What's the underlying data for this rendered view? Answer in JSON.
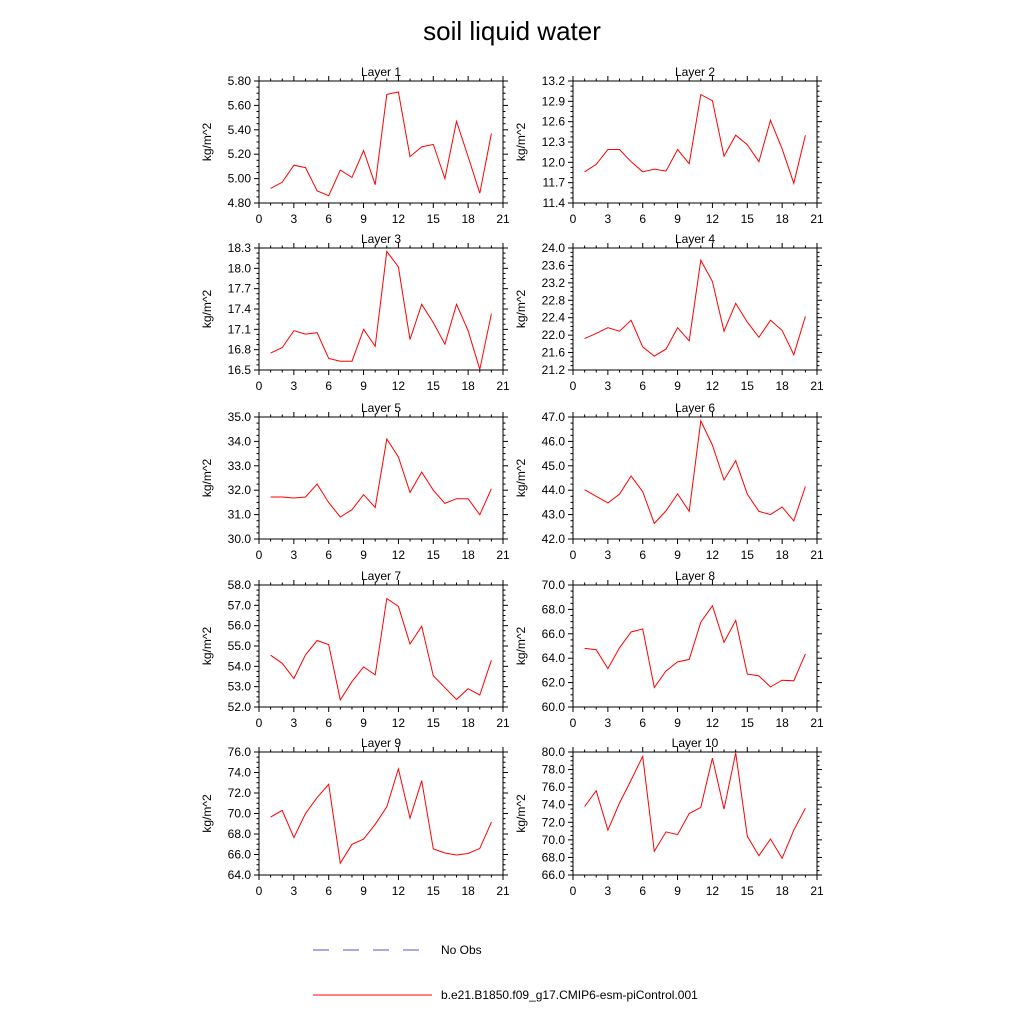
{
  "title": "soil liquid water",
  "legend": {
    "entries": [
      {
        "label": "No Obs",
        "color": "#5555cc",
        "style": "dashed"
      },
      {
        "label": "b.e21.B1850.f09_g17.CMIP6-esm-piControl.001",
        "color": "#ff0000",
        "style": "solid"
      }
    ]
  },
  "chart_data": [
    {
      "type": "line",
      "title": "Layer 1",
      "ylabel": "kg/m^2",
      "xlim": [
        0,
        21
      ],
      "ylim": [
        4.8,
        5.8
      ],
      "xticks": [
        "0",
        "3",
        "6",
        "9",
        "12",
        "15",
        "18",
        "21"
      ],
      "yticks": [
        "4.80",
        "5.00",
        "5.20",
        "5.40",
        "5.60",
        "5.80"
      ],
      "x": [
        1,
        2,
        3,
        4,
        5,
        6,
        7,
        8,
        9,
        10,
        11,
        12,
        13,
        14,
        15,
        16,
        17,
        18,
        19,
        20
      ],
      "series": [
        {
          "name": "b.e21.B1850.f09_g17.CMIP6-esm-piControl.001",
          "color": "#ff0000",
          "values": [
            4.92,
            4.97,
            5.11,
            5.09,
            4.9,
            4.86,
            5.07,
            5.01,
            5.23,
            4.95,
            5.69,
            5.71,
            5.18,
            5.26,
            5.28,
            5.0,
            5.47,
            5.18,
            4.88,
            5.37
          ]
        }
      ]
    },
    {
      "type": "line",
      "title": "Layer 2",
      "ylabel": "kg/m^2",
      "xlim": [
        0,
        21
      ],
      "ylim": [
        11.4,
        13.2
      ],
      "xticks": [
        "0",
        "3",
        "6",
        "9",
        "12",
        "15",
        "18",
        "21"
      ],
      "yticks": [
        "11.4",
        "11.7",
        "12.0",
        "12.3",
        "12.6",
        "12.9",
        "13.2"
      ],
      "x": [
        1,
        2,
        3,
        4,
        5,
        6,
        7,
        8,
        9,
        10,
        11,
        12,
        13,
        14,
        15,
        16,
        17,
        18,
        19,
        20
      ],
      "series": [
        {
          "name": "b.e21.B1850.f09_g17.CMIP6-esm-piControl.001",
          "color": "#ff0000",
          "values": [
            11.86,
            11.97,
            12.19,
            12.19,
            12.01,
            11.86,
            11.9,
            11.87,
            12.19,
            11.98,
            13.0,
            12.91,
            12.09,
            12.4,
            12.26,
            12.01,
            12.62,
            12.2,
            11.69,
            12.4
          ]
        }
      ]
    },
    {
      "type": "line",
      "title": "Layer 3",
      "ylabel": "kg/m^2",
      "xlim": [
        0,
        21
      ],
      "ylim": [
        16.5,
        18.3
      ],
      "xticks": [
        "0",
        "3",
        "6",
        "9",
        "12",
        "15",
        "18",
        "21"
      ],
      "yticks": [
        "16.5",
        "16.8",
        "17.1",
        "17.4",
        "17.7",
        "18.0",
        "18.3"
      ],
      "x": [
        1,
        2,
        3,
        4,
        5,
        6,
        7,
        8,
        9,
        10,
        11,
        12,
        13,
        14,
        15,
        16,
        17,
        18,
        19,
        20
      ],
      "series": [
        {
          "name": "b.e21.B1850.f09_g17.CMIP6-esm-piControl.001",
          "color": "#ff0000",
          "values": [
            16.75,
            16.83,
            17.08,
            17.03,
            17.05,
            16.67,
            16.63,
            16.63,
            17.1,
            16.85,
            18.25,
            18.02,
            16.95,
            17.47,
            17.2,
            16.88,
            17.47,
            17.08,
            16.51,
            17.33
          ]
        }
      ]
    },
    {
      "type": "line",
      "title": "Layer 4",
      "ylabel": "kg/m^2",
      "xlim": [
        0,
        21
      ],
      "ylim": [
        21.2,
        24.0
      ],
      "xticks": [
        "0",
        "3",
        "6",
        "9",
        "12",
        "15",
        "18",
        "21"
      ],
      "yticks": [
        "21.2",
        "21.6",
        "22.0",
        "22.4",
        "22.8",
        "23.2",
        "23.6",
        "24.0"
      ],
      "x": [
        1,
        2,
        3,
        4,
        5,
        6,
        7,
        8,
        9,
        10,
        11,
        12,
        13,
        14,
        15,
        16,
        17,
        18,
        19,
        20
      ],
      "series": [
        {
          "name": "b.e21.B1850.f09_g17.CMIP6-esm-piControl.001",
          "color": "#ff0000",
          "values": [
            21.92,
            22.04,
            22.17,
            22.09,
            22.34,
            21.73,
            21.52,
            21.68,
            22.17,
            21.87,
            23.72,
            23.23,
            22.09,
            22.73,
            22.3,
            21.95,
            22.34,
            22.11,
            21.55,
            22.43
          ]
        }
      ]
    },
    {
      "type": "line",
      "title": "Layer 5",
      "ylabel": "kg/m^2",
      "xlim": [
        0,
        21
      ],
      "ylim": [
        30.0,
        35.0
      ],
      "xticks": [
        "0",
        "3",
        "6",
        "9",
        "12",
        "15",
        "18",
        "21"
      ],
      "yticks": [
        "30.0",
        "31.0",
        "32.0",
        "33.0",
        "34.0",
        "35.0"
      ],
      "x": [
        1,
        2,
        3,
        4,
        5,
        6,
        7,
        8,
        9,
        10,
        11,
        12,
        13,
        14,
        15,
        16,
        17,
        18,
        19,
        20
      ],
      "series": [
        {
          "name": "b.e21.B1850.f09_g17.CMIP6-esm-piControl.001",
          "color": "#ff0000",
          "values": [
            31.72,
            31.72,
            31.68,
            31.72,
            32.25,
            31.49,
            30.9,
            31.2,
            31.82,
            31.29,
            34.1,
            33.36,
            31.91,
            32.74,
            32.0,
            31.46,
            31.65,
            31.65,
            30.99,
            32.06
          ]
        }
      ]
    },
    {
      "type": "line",
      "title": "Layer 6",
      "ylabel": "kg/m^2",
      "xlim": [
        0,
        21
      ],
      "ylim": [
        42.0,
        47.0
      ],
      "xticks": [
        "0",
        "3",
        "6",
        "9",
        "12",
        "15",
        "18",
        "21"
      ],
      "yticks": [
        "42.0",
        "43.0",
        "44.0",
        "45.0",
        "46.0",
        "47.0"
      ],
      "x": [
        1,
        2,
        3,
        4,
        5,
        6,
        7,
        8,
        9,
        10,
        11,
        12,
        13,
        14,
        15,
        16,
        17,
        18,
        19,
        20
      ],
      "series": [
        {
          "name": "b.e21.B1850.f09_g17.CMIP6-esm-piControl.001",
          "color": "#ff0000",
          "values": [
            44.02,
            43.75,
            43.48,
            43.84,
            44.58,
            43.94,
            42.64,
            43.15,
            43.85,
            43.13,
            46.84,
            45.85,
            44.42,
            45.21,
            43.84,
            43.13,
            43.0,
            43.31,
            42.74,
            44.15
          ]
        }
      ]
    },
    {
      "type": "line",
      "title": "Layer 7",
      "ylabel": "kg/m^2",
      "xlim": [
        0,
        21
      ],
      "ylim": [
        52.0,
        58.0
      ],
      "xticks": [
        "0",
        "3",
        "6",
        "9",
        "12",
        "15",
        "18",
        "21"
      ],
      "yticks": [
        "52.0",
        "53.0",
        "54.0",
        "55.0",
        "56.0",
        "57.0",
        "58.0"
      ],
      "x": [
        1,
        2,
        3,
        4,
        5,
        6,
        7,
        8,
        9,
        10,
        11,
        12,
        13,
        14,
        15,
        16,
        17,
        18,
        19,
        20
      ],
      "series": [
        {
          "name": "b.e21.B1850.f09_g17.CMIP6-esm-piControl.001",
          "color": "#ff0000",
          "values": [
            54.55,
            54.15,
            53.4,
            54.56,
            55.27,
            55.07,
            52.35,
            53.25,
            53.97,
            53.58,
            57.33,
            56.95,
            55.1,
            55.97,
            53.54,
            52.95,
            52.37,
            52.9,
            52.59,
            54.3
          ]
        }
      ]
    },
    {
      "type": "line",
      "title": "Layer 8",
      "ylabel": "kg/m^2",
      "xlim": [
        0,
        21
      ],
      "ylim": [
        60.0,
        70.0
      ],
      "xticks": [
        "0",
        "3",
        "6",
        "9",
        "12",
        "15",
        "18",
        "21"
      ],
      "yticks": [
        "60.0",
        "62.0",
        "64.0",
        "66.0",
        "68.0",
        "70.0"
      ],
      "x": [
        1,
        2,
        3,
        4,
        5,
        6,
        7,
        8,
        9,
        10,
        11,
        12,
        13,
        14,
        15,
        16,
        17,
        18,
        19,
        20
      ],
      "series": [
        {
          "name": "b.e21.B1850.f09_g17.CMIP6-esm-piControl.001",
          "color": "#ff0000",
          "values": [
            64.8,
            64.7,
            63.15,
            64.85,
            66.15,
            66.4,
            61.6,
            62.95,
            63.7,
            63.9,
            66.95,
            68.3,
            65.3,
            67.1,
            62.7,
            62.55,
            61.65,
            62.2,
            62.15,
            64.35
          ]
        }
      ]
    },
    {
      "type": "line",
      "title": "Layer 9",
      "ylabel": "kg/m^2",
      "xlim": [
        0,
        21
      ],
      "ylim": [
        64.0,
        76.0
      ],
      "xticks": [
        "0",
        "3",
        "6",
        "9",
        "12",
        "15",
        "18",
        "21"
      ],
      "yticks": [
        "64.0",
        "66.0",
        "68.0",
        "70.0",
        "72.0",
        "74.0",
        "76.0"
      ],
      "x": [
        1,
        2,
        3,
        4,
        5,
        6,
        7,
        8,
        9,
        10,
        11,
        12,
        13,
        14,
        15,
        16,
        17,
        18,
        19,
        20
      ],
      "series": [
        {
          "name": "b.e21.B1850.f09_g17.CMIP6-esm-piControl.001",
          "color": "#ff0000",
          "values": [
            69.65,
            70.3,
            67.65,
            70.0,
            71.55,
            72.85,
            65.15,
            67.0,
            67.5,
            68.95,
            70.65,
            74.35,
            69.55,
            73.2,
            66.55,
            66.15,
            65.95,
            66.1,
            66.6,
            69.15
          ]
        }
      ]
    },
    {
      "type": "line",
      "title": "Layer 10",
      "ylabel": "kg/m^2",
      "xlim": [
        0,
        21
      ],
      "ylim": [
        66.0,
        80.0
      ],
      "xticks": [
        "0",
        "3",
        "6",
        "9",
        "12",
        "15",
        "18",
        "21"
      ],
      "yticks": [
        "66.0",
        "68.0",
        "70.0",
        "72.0",
        "74.0",
        "76.0",
        "78.0",
        "80.0"
      ],
      "x": [
        1,
        2,
        3,
        4,
        5,
        6,
        7,
        8,
        9,
        10,
        11,
        12,
        13,
        14,
        15,
        16,
        17,
        18,
        19,
        20
      ],
      "series": [
        {
          "name": "b.e21.B1850.f09_g17.CMIP6-esm-piControl.001",
          "color": "#ff0000",
          "values": [
            73.8,
            75.6,
            71.1,
            74.2,
            76.8,
            79.5,
            68.7,
            70.9,
            70.6,
            73.0,
            73.7,
            79.3,
            73.5,
            79.9,
            70.4,
            68.2,
            70.1,
            67.9,
            71.1,
            73.6
          ]
        }
      ]
    }
  ]
}
